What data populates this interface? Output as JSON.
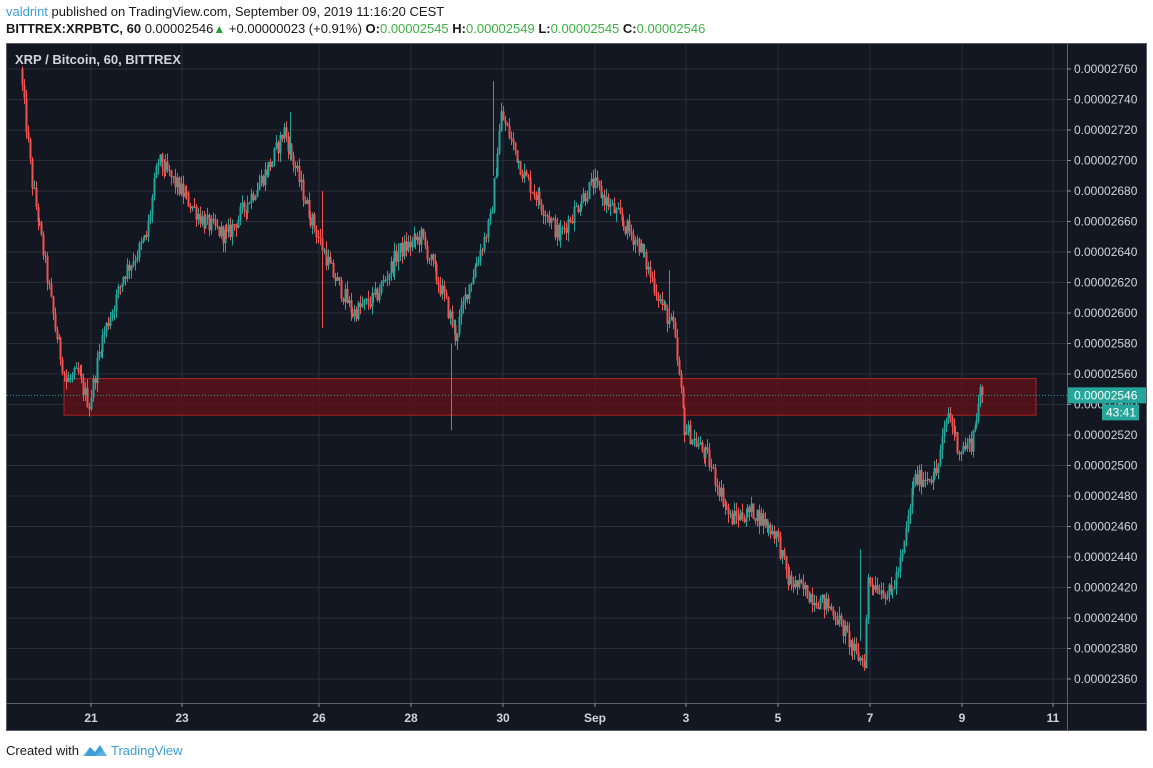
{
  "header": {
    "author": "valdrint",
    "published_text": " published on TradingView.com, September 09, 2019 11:16:20 CEST",
    "symbol": "BITTREX:XRPBTC, 60",
    "last_price": "0.00002546",
    "change_arrow": "▲",
    "change": "+0.00000023 (+0.91%)",
    "ohlc": {
      "o_label": "O:",
      "o": "0.00002545",
      "h_label": "H:",
      "h": "0.00002549",
      "l_label": "L:",
      "l": "0.00002545",
      "c_label": "C:",
      "c": "0.00002546"
    }
  },
  "chart_title": "XRP / Bitcoin, 60, BITTREX",
  "price_tag": {
    "value": "0.00002546",
    "countdown": "43:41",
    "color": "#26a69a"
  },
  "footer": {
    "created_with": "Created with",
    "brand": "TradingView"
  },
  "colors": {
    "up": "#26a69a",
    "down": "#ef5350",
    "background": "#131722",
    "grid": "#2a2e39",
    "zone_fill": "#5c1219",
    "zone_border": "#b22222"
  },
  "chart_data": {
    "type": "candlestick",
    "title": "XRP / Bitcoin, 60, BITTREX",
    "interval": "60",
    "exchange": "BITTREX",
    "xlabel": "",
    "ylabel": "",
    "x_ticks": [
      "21",
      "23",
      "26",
      "28",
      "30",
      "Sep",
      "3",
      "5",
      "7",
      "9",
      "11"
    ],
    "y_ticks": [
      "0.00002760",
      "0.00002740",
      "0.00002720",
      "0.00002700",
      "0.00002680",
      "0.00002660",
      "0.00002640",
      "0.00002620",
      "0.00002600",
      "0.00002580",
      "0.00002560",
      "0.00002540",
      "0.00002520",
      "0.00002500",
      "0.00002480",
      "0.00002460",
      "0.00002440",
      "0.00002420",
      "0.00002400",
      "0.00002380",
      "0.00002360"
    ],
    "ylim": [
      2.35e-05,
      2.77e-05
    ],
    "grid": true,
    "current_price": 2.546e-05,
    "support_resistance_zone": {
      "low": 2.533e-05,
      "high": 2.557e-05,
      "from": "Aug 20",
      "to": "Sep 10"
    },
    "price_path": [
      {
        "date": "Aug 19 12:00",
        "price": 2.76e-05
      },
      {
        "date": "Aug 19 18:00",
        "price": 2.685e-05
      },
      {
        "date": "Aug 20 00:00",
        "price": 2.64e-05
      },
      {
        "date": "Aug 20 06:00",
        "price": 2.59e-05
      },
      {
        "date": "Aug 20 12:00",
        "price": 2.555e-05
      },
      {
        "date": "Aug 20 18:00",
        "price": 2.56e-05
      },
      {
        "date": "Aug 21 00:00",
        "price": 2.54e-05
      },
      {
        "date": "Aug 21 06:00",
        "price": 2.58e-05
      },
      {
        "date": "Aug 21 18:00",
        "price": 2.625e-05
      },
      {
        "date": "Aug 22 06:00",
        "price": 2.65e-05
      },
      {
        "date": "Aug 22 12:00",
        "price": 2.7e-05
      },
      {
        "date": "Aug 23 00:00",
        "price": 2.68e-05
      },
      {
        "date": "Aug 23 12:00",
        "price": 2.66e-05
      },
      {
        "date": "Aug 24 00:00",
        "price": 2.65e-05
      },
      {
        "date": "Aug 24 12:00",
        "price": 2.675e-05
      },
      {
        "date": "Aug 25 00:00",
        "price": 2.7e-05
      },
      {
        "date": "Aug 25 06:00",
        "price": 2.72e-05
      },
      {
        "date": "Aug 25 18:00",
        "price": 2.67e-05
      },
      {
        "date": "Aug 26 06:00",
        "price": 2.63e-05
      },
      {
        "date": "Aug 26 18:00",
        "price": 2.6e-05
      },
      {
        "date": "Aug 27 06:00",
        "price": 2.61e-05
      },
      {
        "date": "Aug 27 18:00",
        "price": 2.64e-05
      },
      {
        "date": "Aug 28 06:00",
        "price": 2.65e-05
      },
      {
        "date": "Aug 28 18:00",
        "price": 2.61e-05
      },
      {
        "date": "Aug 29 00:00",
        "price": 2.585e-05
      },
      {
        "date": "Aug 29 06:00",
        "price": 2.615e-05
      },
      {
        "date": "Aug 29 18:00",
        "price": 2.66e-05
      },
      {
        "date": "Aug 30 00:00",
        "price": 2.73e-05
      },
      {
        "date": "Aug 30 12:00",
        "price": 2.69e-05
      },
      {
        "date": "Aug 31 00:00",
        "price": 2.665e-05
      },
      {
        "date": "Aug 31 06:00",
        "price": 2.65e-05
      },
      {
        "date": "Aug 31 18:00",
        "price": 2.675e-05
      },
      {
        "date": "Sep 01 00:00",
        "price": 2.685e-05
      },
      {
        "date": "Sep 01 12:00",
        "price": 2.665e-05
      },
      {
        "date": "Sep 02 00:00",
        "price": 2.645e-05
      },
      {
        "date": "Sep 02 12:00",
        "price": 2.605e-05
      },
      {
        "date": "Sep 02 18:00",
        "price": 2.59e-05
      },
      {
        "date": "Sep 03 00:00",
        "price": 2.525e-05
      },
      {
        "date": "Sep 03 12:00",
        "price": 2.505e-05
      },
      {
        "date": "Sep 04 00:00",
        "price": 2.465e-05
      },
      {
        "date": "Sep 04 12:00",
        "price": 2.47e-05
      },
      {
        "date": "Sep 05 00:00",
        "price": 2.455e-05
      },
      {
        "date": "Sep 05 06:00",
        "price": 2.425e-05
      },
      {
        "date": "Sep 05 18:00",
        "price": 2.415e-05
      },
      {
        "date": "Sep 06 06:00",
        "price": 2.405e-05
      },
      {
        "date": "Sep 06 18:00",
        "price": 2.375e-05
      },
      {
        "date": "Sep 06 22:00",
        "price": 2.372e-05
      },
      {
        "date": "Sep 07 00:00",
        "price": 2.425e-05
      },
      {
        "date": "Sep 07 12:00",
        "price": 2.415e-05
      },
      {
        "date": "Sep 07 18:00",
        "price": 2.44e-05
      },
      {
        "date": "Sep 08 00:00",
        "price": 2.49e-05
      },
      {
        "date": "Sep 08 12:00",
        "price": 2.495e-05
      },
      {
        "date": "Sep 08 18:00",
        "price": 2.535e-05
      },
      {
        "date": "Sep 09 00:00",
        "price": 2.51e-05
      },
      {
        "date": "Sep 09 06:00",
        "price": 2.515e-05
      },
      {
        "date": "Sep 09 11:00",
        "price": 2.546e-05
      }
    ]
  }
}
